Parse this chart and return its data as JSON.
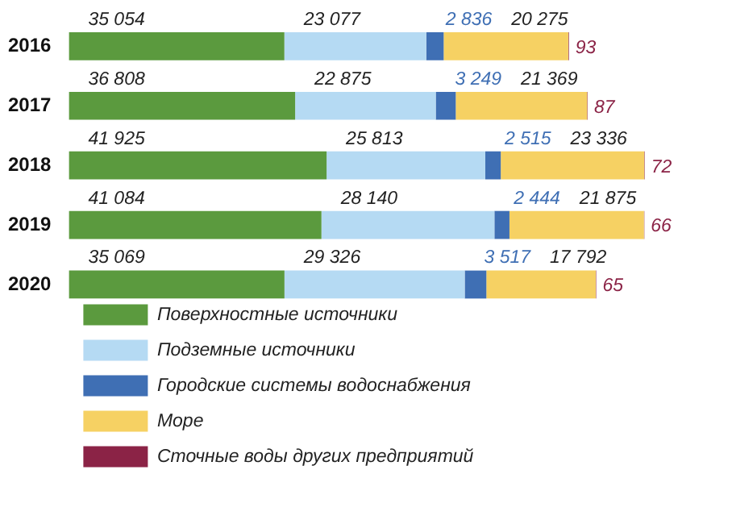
{
  "chart_data": {
    "type": "bar",
    "orientation": "horizontal",
    "stacked": true,
    "categories": [
      "2016",
      "2017",
      "2018",
      "2019",
      "2020"
    ],
    "series": [
      {
        "name": "Поверхностные источники",
        "color": "#5b9a3e",
        "values": [
          35054,
          36808,
          41925,
          41084,
          35069
        ],
        "value_labels": [
          "35 054",
          "36 808",
          "41 925",
          "41 084",
          "35 069"
        ]
      },
      {
        "name": "Подземные источники",
        "color": "#b5daf3",
        "values": [
          23077,
          22875,
          25813,
          28140,
          29326
        ],
        "value_labels": [
          "23 077",
          "22 875",
          "25 813",
          "28 140",
          "29 326"
        ]
      },
      {
        "name": "Городские системы водоснабжения",
        "color": "#3f6fb4",
        "values": [
          2836,
          3249,
          2515,
          2444,
          3517
        ],
        "value_labels": [
          "2 836",
          "3 249",
          "2 515",
          "2 444",
          "3 517"
        ]
      },
      {
        "name": "Море",
        "color": "#f6d163",
        "values": [
          20275,
          21369,
          23336,
          21875,
          17792
        ],
        "value_labels": [
          "20 275",
          "21 369",
          "23 336",
          "21 875",
          "17 792"
        ]
      },
      {
        "name": "Сточные воды других предприятий",
        "color": "#8b2346",
        "values": [
          93,
          87,
          72,
          66,
          65
        ],
        "value_labels": [
          "93",
          "87",
          "72",
          "66",
          "65"
        ]
      }
    ],
    "grid": false,
    "legend": "bottom left",
    "tick_labels": "y"
  }
}
